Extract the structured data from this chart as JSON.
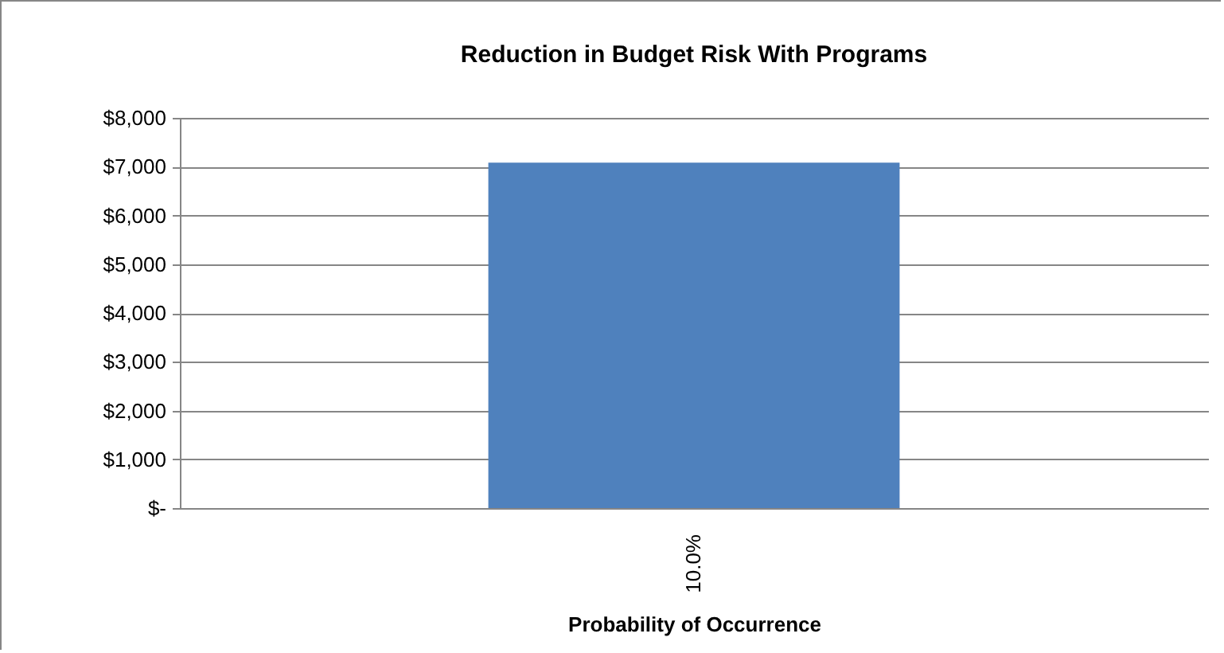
{
  "chart_data": {
    "type": "bar",
    "title": "Reduction in Budget Risk With Programs",
    "xlabel": "Probability of  Occurrence",
    "categories": [
      "10.0%"
    ],
    "values": [
      7080
    ],
    "color": "#4f81bd",
    "ylim": [
      0,
      8000
    ],
    "yticks": [
      {
        "value": 0,
        "label": "$-"
      },
      {
        "value": 1000,
        "label": "$1,000"
      },
      {
        "value": 2000,
        "label": "$2,000"
      },
      {
        "value": 3000,
        "label": "$3,000"
      },
      {
        "value": 4000,
        "label": "$4,000"
      },
      {
        "value": 5000,
        "label": "$5,000"
      },
      {
        "value": 6000,
        "label": "$6,000"
      },
      {
        "value": 7000,
        "label": "$7,000"
      },
      {
        "value": 8000,
        "label": "$8,000"
      }
    ],
    "grid": "y"
  }
}
